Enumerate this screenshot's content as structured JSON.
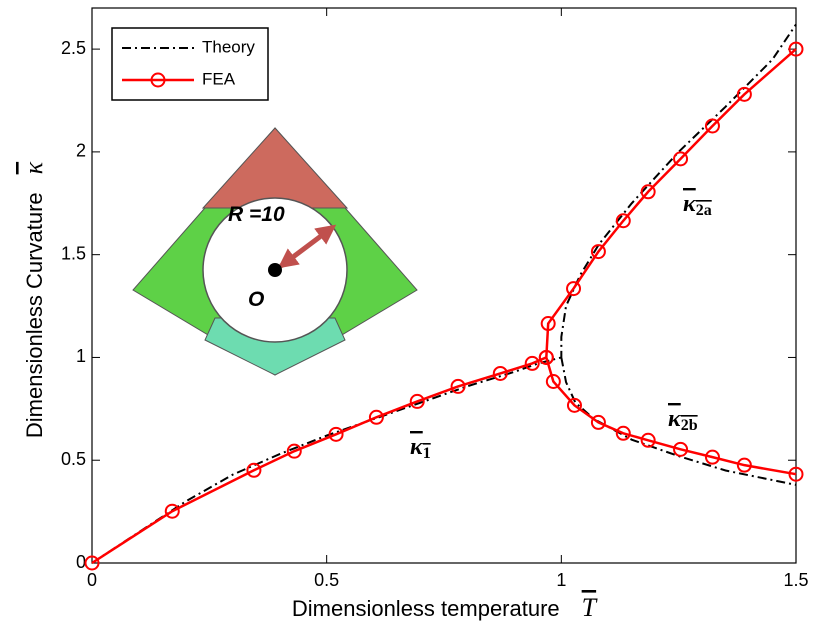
{
  "chart_data": {
    "type": "line",
    "x_label": "Dimensionless temperature",
    "x_symbol": "T",
    "y_label": "Dimensionless Curvature",
    "y_symbol": "κ",
    "xlim": [
      0,
      1.5
    ],
    "ylim": [
      0,
      2.7
    ],
    "xticks": [
      0,
      0.5,
      1,
      1.5
    ],
    "yticks": [
      0,
      0.5,
      1,
      1.5,
      2,
      2.5
    ],
    "grid": false,
    "legend": "upper left",
    "series": [
      {
        "name": "Theory",
        "color": "#000000",
        "dash": "dashdot",
        "x": [
          0,
          0.1,
          0.2,
          0.3,
          0.4,
          0.5,
          0.6,
          0.7,
          0.8,
          0.9,
          0.95,
          1.0,
          1.0,
          1.01,
          1.04,
          1.08,
          1.15,
          1.25,
          1.35,
          1.45,
          1.5,
          null,
          1.0,
          1.01,
          1.03,
          1.07,
          1.15,
          1.25,
          1.35,
          1.5
        ],
        "values": [
          0,
          0.15,
          0.3,
          0.43,
          0.53,
          0.62,
          0.7,
          0.78,
          0.86,
          0.93,
          0.97,
          1.0,
          1.1,
          1.25,
          1.4,
          1.55,
          1.75,
          2.0,
          2.22,
          2.45,
          2.62,
          null,
          1.0,
          0.88,
          0.78,
          0.7,
          0.6,
          0.52,
          0.45,
          0.38
        ]
      },
      {
        "name": "FEA",
        "color": "#ff0000",
        "marker": "o",
        "x": [
          0,
          0.171,
          0.345,
          0.431,
          0.52,
          0.606,
          0.693,
          0.78,
          0.87,
          0.938,
          0.968,
          0.972,
          1.026,
          1.079,
          1.132,
          1.185,
          1.254,
          1.322,
          1.39,
          1.5,
          null,
          0.968,
          0.983,
          1.028,
          1.079,
          1.132,
          1.185,
          1.254,
          1.322,
          1.39,
          1.5
        ],
        "values": [
          0,
          0.252,
          0.451,
          0.544,
          0.626,
          0.709,
          0.786,
          0.859,
          0.922,
          0.971,
          1.0,
          1.165,
          1.335,
          1.515,
          1.665,
          1.806,
          1.966,
          2.126,
          2.28,
          2.5,
          null,
          1.0,
          0.883,
          0.767,
          0.684,
          0.631,
          0.597,
          0.553,
          0.515,
          0.476,
          0.432
        ]
      }
    ],
    "annotations": [
      {
        "text": "κ",
        "sub": "1"
      },
      {
        "text": "κ",
        "sub": "2a"
      },
      {
        "text": "κ",
        "sub": "2b"
      },
      {
        "text": "R =10"
      },
      {
        "text": "O"
      }
    ]
  }
}
